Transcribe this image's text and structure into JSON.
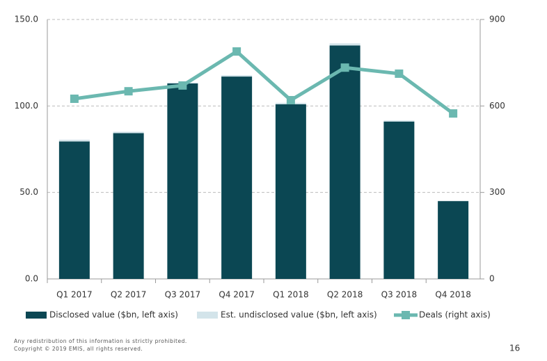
{
  "chart_data": {
    "type": "bar",
    "categories": [
      "Q1 2017",
      "Q2 2017",
      "Q3 2017",
      "Q4 2017",
      "Q1 2018",
      "Q2 2018",
      "Q3 2018",
      "Q4 2018"
    ],
    "series": [
      {
        "name": "Disclosed value ($bn, left axis)",
        "color": "#0b4753",
        "values": [
          79.5,
          84.3,
          113,
          117,
          101,
          135,
          91,
          45
        ]
      },
      {
        "name": "Est. undisclosed value ($bn, left axis)",
        "color": "#d3e4ea",
        "values": [
          1,
          0.8,
          0.5,
          0.8,
          0.8,
          1.2,
          0.6,
          0.2
        ]
      },
      {
        "name": "Deals (right axis)",
        "color": "#6bb8b0",
        "type": "line",
        "axis": "y2",
        "values": [
          625,
          651,
          671,
          789,
          620,
          733,
          712,
          574
        ]
      }
    ],
    "ylim": [
      0,
      150
    ],
    "yticks": [
      {
        "value": 0,
        "label": "0.0"
      },
      {
        "value": 50,
        "label": "50.0"
      },
      {
        "value": 100,
        "label": "100.0"
      },
      {
        "value": 150,
        "label": "150.0"
      }
    ],
    "y2lim": [
      0,
      900
    ],
    "y2ticks": [
      0,
      300,
      600,
      900
    ],
    "grid": true
  },
  "footer": {
    "notice": "Any redistribution of this information is strictly prohibited.",
    "copyright": "Copyright © 2019 EMIS, all rights reserved.",
    "page": "16"
  }
}
